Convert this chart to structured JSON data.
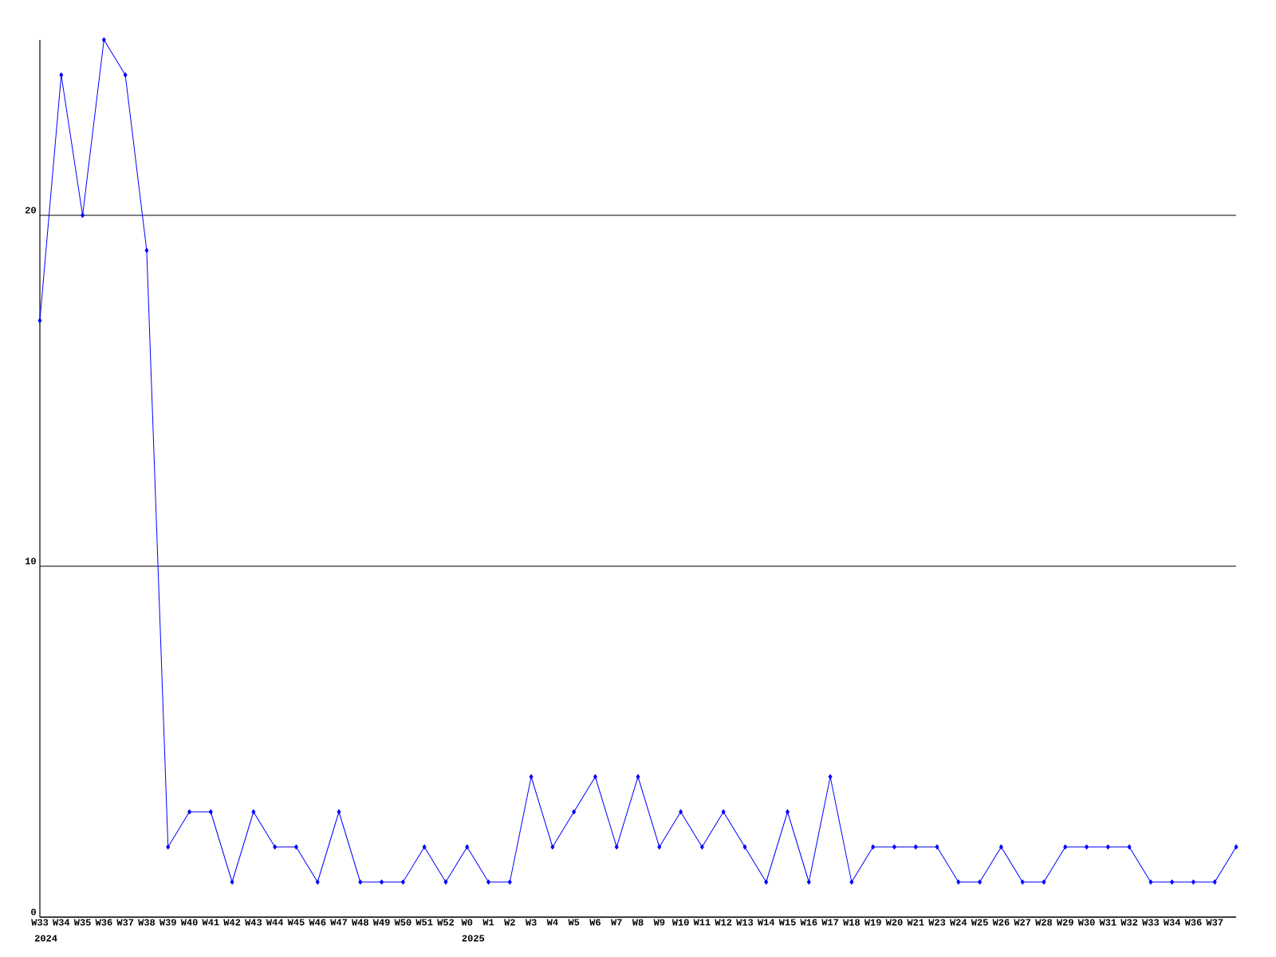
{
  "chart_data": {
    "type": "line",
    "categories": [
      "W33",
      "W34",
      "W35",
      "W36",
      "W37",
      "W38",
      "W39",
      "W40",
      "W41",
      "W42",
      "W43",
      "W44",
      "W45",
      "W46",
      "W47",
      "W48",
      "W49",
      "W50",
      "W51",
      "W52",
      "W0",
      "W1",
      "W2",
      "W3",
      "W4",
      "W5",
      "W6",
      "W7",
      "W8",
      "W9",
      "W10",
      "W11",
      "W12",
      "W13",
      "W14",
      "W15",
      "W16",
      "W17",
      "W18",
      "W19",
      "W20",
      "W21",
      "W23",
      "W24",
      "W25",
      "W26",
      "W27",
      "W28",
      "W29",
      "W30",
      "W31",
      "W32",
      "W33",
      "W34",
      "W36",
      "W37",
      null
    ],
    "values": [
      17,
      24,
      20,
      25,
      24,
      19,
      2,
      3,
      3,
      1,
      3,
      2,
      2,
      1,
      3,
      1,
      1,
      1,
      2,
      1,
      2,
      1,
      1,
      4,
      2,
      3,
      4,
      2,
      4,
      2,
      3,
      2,
      3,
      2,
      1,
      3,
      1,
      4,
      1,
      2,
      2,
      2,
      2,
      1,
      1,
      2,
      1,
      1,
      2,
      2,
      2,
      2,
      1,
      1,
      1,
      1,
      2
    ],
    "color": "#0000ff",
    "ylim": [
      0,
      25
    ],
    "yticks": [
      0,
      10,
      20
    ],
    "grid": "y",
    "marker": "diamond",
    "line_style": "solid",
    "annotations": [
      "2024",
      "2025"
    ]
  }
}
